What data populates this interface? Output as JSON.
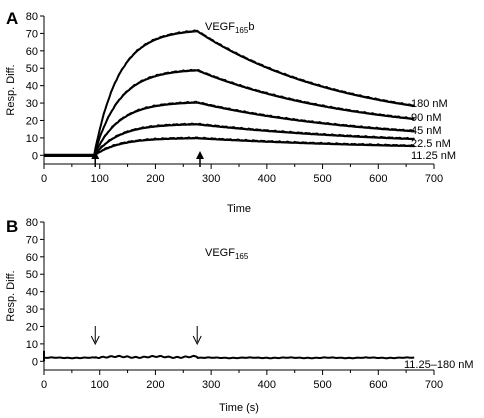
{
  "chart_data": [
    {
      "type": "line",
      "panel": "A",
      "title": "VEGF",
      "title_sub": "165",
      "title_suffix": "b",
      "xlabel": "Time",
      "ylabel": "Resp. Diff.",
      "xlim": [
        0,
        700
      ],
      "ylim": [
        -5,
        80
      ],
      "xticks": [
        0,
        100,
        200,
        300,
        400,
        500,
        600,
        700
      ],
      "yticks": [
        0,
        10,
        20,
        30,
        40,
        50,
        60,
        70,
        80
      ],
      "grid": false,
      "association_start": 90,
      "dissociation_start": 275,
      "end_time": 665,
      "arrow_style": "up",
      "arrows_x": [
        92,
        280
      ],
      "series": [
        {
          "label": "180 nM",
          "peak": 71.5,
          "end": 28.5
        },
        {
          "label": "90 nM",
          "peak": 49,
          "end": 21
        },
        {
          "label": "45 nM",
          "peak": 30.5,
          "end": 14
        },
        {
          "label": "22.5 nM",
          "peak": 18,
          "end": 9.5
        },
        {
          "label": "11.25 nM",
          "peak": 10,
          "end": 5.5
        }
      ]
    },
    {
      "type": "line",
      "panel": "B",
      "title": "VEGF",
      "title_sub": "165",
      "title_suffix": "",
      "xlabel": "Time (s)",
      "ylabel": "Resp. Diff.",
      "xlim": [
        0,
        700
      ],
      "ylim": [
        -5,
        80
      ],
      "xticks": [
        0,
        100,
        200,
        300,
        400,
        500,
        600,
        700
      ],
      "yticks": [
        0,
        10,
        20,
        30,
        40,
        50,
        60,
        70,
        80
      ],
      "grid": false,
      "arrow_style": "down",
      "arrows_x": [
        92,
        275
      ],
      "series": [
        {
          "label": "11.25–180 nM",
          "peak": 2.5,
          "end": 2
        }
      ]
    }
  ]
}
